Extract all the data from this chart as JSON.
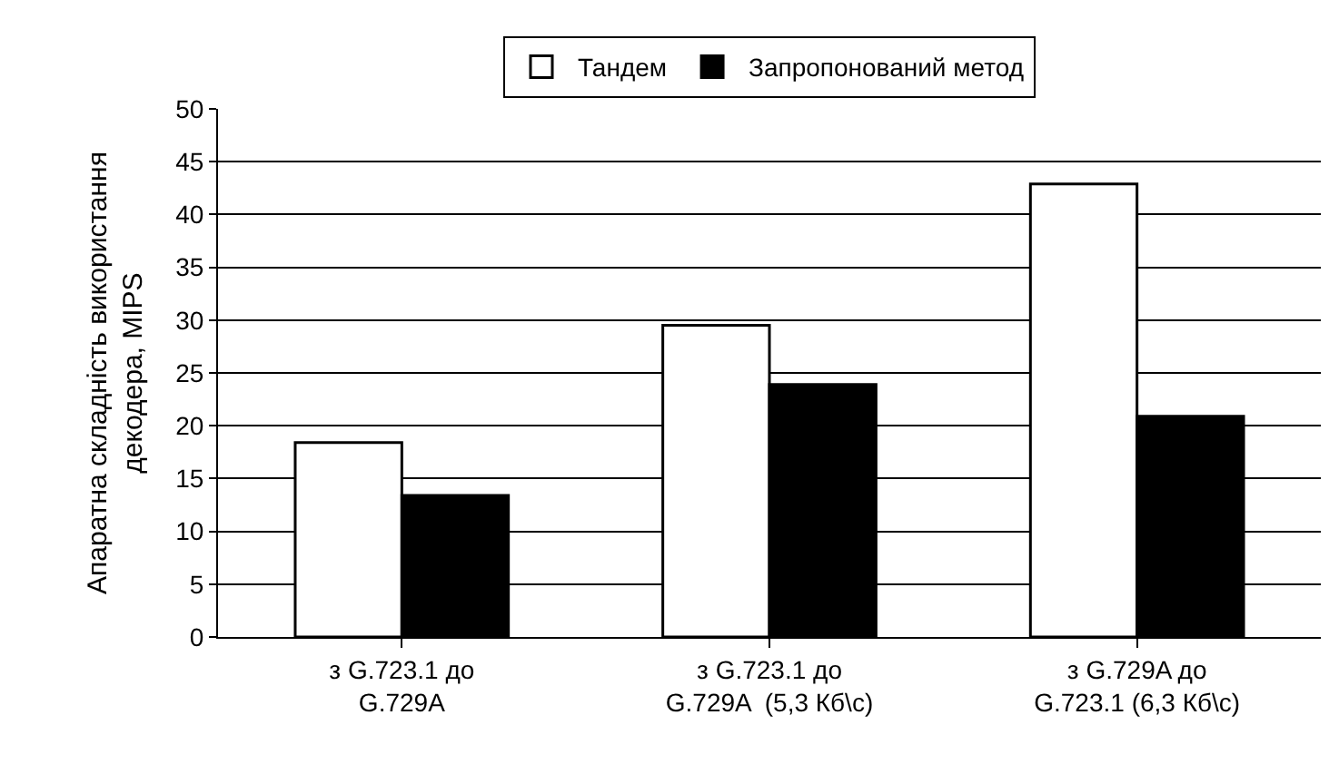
{
  "chart_data": {
    "type": "bar",
    "ylabel": "Апаратна складність використання декодера, MIPS",
    "categories": [
      "з G.723.1 до\nG.729A",
      "з G.723.1 до\nG.729A  (5,3 Кб\\с)",
      "з G.729A до\nG.723.1 (6,3 Кб\\с)"
    ],
    "series": [
      {
        "name": "Тандем",
        "color": "#ffffff",
        "values": [
          18.4,
          29.5,
          42.9
        ]
      },
      {
        "name": "Запропонований метод",
        "color": "#000000",
        "values": [
          13.4,
          23.9,
          20.9
        ]
      }
    ],
    "ylim": [
      0,
      50
    ],
    "yticks": [
      0,
      5,
      10,
      15,
      20,
      25,
      30,
      35,
      40,
      45,
      50
    ],
    "grid": "y",
    "legend": "top"
  }
}
